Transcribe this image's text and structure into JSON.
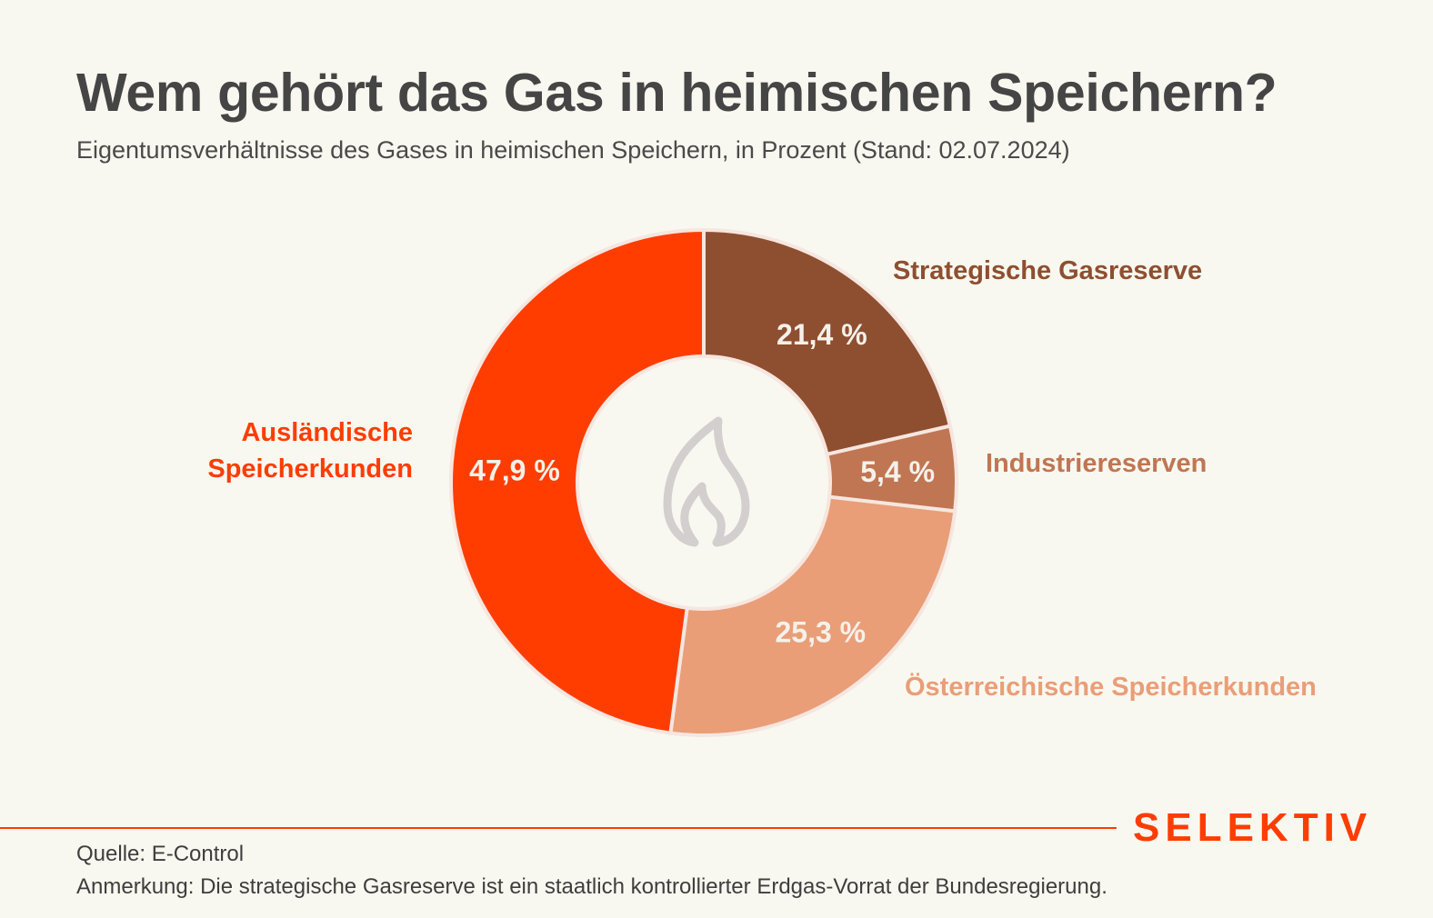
{
  "chart_data": {
    "type": "pie",
    "variant": "donut",
    "title": "Wem gehört das Gas in heimischen Speichern?",
    "subtitle": "Eigentumsverhältnisse des Gases in heimischen Speichern, in Prozent (Stand: 02.07.2024)",
    "slices": [
      {
        "name": "Strategische Gasreserve",
        "value": 21.4,
        "label": "21,4 %",
        "color": "#8e4f30"
      },
      {
        "name": "Industriereserven",
        "value": 5.4,
        "label": "5,4 %",
        "color": "#c07652"
      },
      {
        "name": "Österreichische Speicherkunden",
        "value": 25.3,
        "label": "25,3 %",
        "color": "#e99e78"
      },
      {
        "name": "Ausländische Speicherkunden",
        "value": 47.9,
        "label": "47,9 %",
        "color": "#ff3d00"
      }
    ],
    "center_icon": "flame-icon"
  },
  "footer": {
    "source": "Quelle: E-Control",
    "note": "Anmerkung: Die strategische Gasreserve ist ein staatlich kontrollierter Erdgas-Vorrat der Bundesregierung.",
    "logo": "SELEKTIV",
    "accent": "#ff3d00"
  }
}
